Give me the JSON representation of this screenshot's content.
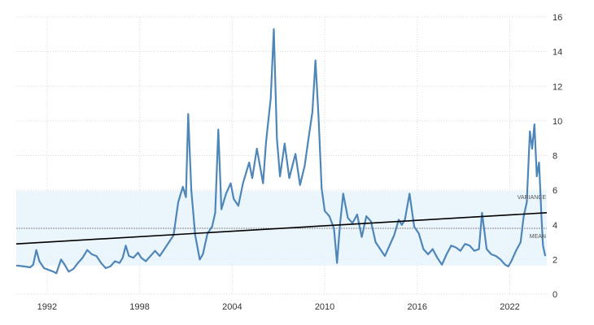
{
  "colors": {
    "series": "#4f86b8",
    "trend": "#000000",
    "band": "#e8f3fb",
    "grid": "#d9d9d9",
    "mean": "#888888"
  },
  "chart_data": {
    "type": "line",
    "title": "",
    "xlabel": "",
    "ylabel": "",
    "xlim": [
      1990.0,
      2024.4
    ],
    "ylim": [
      0,
      16
    ],
    "grid": true,
    "y_axis_side": "right",
    "x_ticks": [
      "1992",
      "1998",
      "2004",
      "2010",
      "2016",
      "2022"
    ],
    "y_ticks": [
      "0",
      "2",
      "4",
      "6",
      "8",
      "10",
      "12",
      "14",
      "16"
    ],
    "annotations": {
      "variance": "VARIANCE",
      "mean": "MEAN"
    },
    "variance_band": [
      1.65,
      5.95
    ],
    "mean_value": 3.8,
    "trend_line": {
      "x": [
        1990.0,
        2024.4
      ],
      "y": [
        2.9,
        4.7
      ]
    },
    "series": [
      {
        "values": [
          [
            1990.0,
            1.65
          ],
          [
            1990.5,
            1.6
          ],
          [
            1990.9,
            1.55
          ],
          [
            1991.1,
            1.7
          ],
          [
            1991.3,
            2.55
          ],
          [
            1991.5,
            1.9
          ],
          [
            1991.8,
            1.5
          ],
          [
            1992.1,
            1.4
          ],
          [
            1992.4,
            1.3
          ],
          [
            1992.6,
            1.2
          ],
          [
            1992.9,
            2.0
          ],
          [
            1993.1,
            1.75
          ],
          [
            1993.4,
            1.3
          ],
          [
            1993.7,
            1.45
          ],
          [
            1994.0,
            1.8
          ],
          [
            1994.3,
            2.1
          ],
          [
            1994.6,
            2.55
          ],
          [
            1994.9,
            2.3
          ],
          [
            1995.2,
            2.2
          ],
          [
            1995.5,
            1.8
          ],
          [
            1995.8,
            1.5
          ],
          [
            1996.1,
            1.6
          ],
          [
            1996.4,
            1.9
          ],
          [
            1996.7,
            1.8
          ],
          [
            1996.9,
            2.1
          ],
          [
            1997.1,
            2.8
          ],
          [
            1997.3,
            2.2
          ],
          [
            1997.6,
            2.1
          ],
          [
            1997.9,
            2.4
          ],
          [
            1998.1,
            2.1
          ],
          [
            1998.4,
            1.9
          ],
          [
            1998.7,
            2.2
          ],
          [
            1999.0,
            2.5
          ],
          [
            1999.3,
            2.2
          ],
          [
            1999.6,
            2.6
          ],
          [
            1999.9,
            3.0
          ],
          [
            2000.2,
            3.4
          ],
          [
            2000.5,
            5.3
          ],
          [
            2000.8,
            6.2
          ],
          [
            2001.0,
            5.6
          ],
          [
            2001.15,
            10.4
          ],
          [
            2001.35,
            6.0
          ],
          [
            2001.6,
            3.4
          ],
          [
            2001.9,
            2.0
          ],
          [
            2002.1,
            2.3
          ],
          [
            2002.4,
            3.5
          ],
          [
            2002.7,
            3.9
          ],
          [
            2002.9,
            4.7
          ],
          [
            2003.1,
            9.5
          ],
          [
            2003.3,
            4.9
          ],
          [
            2003.6,
            5.8
          ],
          [
            2003.9,
            6.4
          ],
          [
            2004.1,
            5.5
          ],
          [
            2004.4,
            5.1
          ],
          [
            2004.7,
            6.4
          ],
          [
            2004.9,
            7.0
          ],
          [
            2005.1,
            7.6
          ],
          [
            2005.3,
            6.7
          ],
          [
            2005.6,
            8.4
          ],
          [
            2005.8,
            7.4
          ],
          [
            2006.0,
            6.4
          ],
          [
            2006.2,
            8.8
          ],
          [
            2006.5,
            11.3
          ],
          [
            2006.7,
            15.3
          ],
          [
            2006.9,
            9.0
          ],
          [
            2007.1,
            6.8
          ],
          [
            2007.4,
            8.7
          ],
          [
            2007.7,
            6.7
          ],
          [
            2007.9,
            7.4
          ],
          [
            2008.1,
            8.1
          ],
          [
            2008.4,
            6.3
          ],
          [
            2008.7,
            7.4
          ],
          [
            2009.0,
            9.3
          ],
          [
            2009.2,
            10.5
          ],
          [
            2009.4,
            13.5
          ],
          [
            2009.6,
            10.2
          ],
          [
            2009.8,
            6.1
          ],
          [
            2010.0,
            4.8
          ],
          [
            2010.3,
            4.5
          ],
          [
            2010.6,
            3.8
          ],
          [
            2010.8,
            1.8
          ],
          [
            2011.0,
            4.1
          ],
          [
            2011.2,
            5.8
          ],
          [
            2011.5,
            4.4
          ],
          [
            2011.8,
            4.1
          ],
          [
            2012.1,
            4.6
          ],
          [
            2012.4,
            3.3
          ],
          [
            2012.7,
            4.5
          ],
          [
            2013.0,
            4.2
          ],
          [
            2013.3,
            3.0
          ],
          [
            2013.6,
            2.6
          ],
          [
            2013.9,
            2.2
          ],
          [
            2014.2,
            2.8
          ],
          [
            2014.5,
            3.4
          ],
          [
            2014.8,
            4.3
          ],
          [
            2015.0,
            4.0
          ],
          [
            2015.2,
            4.3
          ],
          [
            2015.5,
            5.8
          ],
          [
            2015.8,
            3.9
          ],
          [
            2016.1,
            3.5
          ],
          [
            2016.4,
            2.6
          ],
          [
            2016.7,
            2.3
          ],
          [
            2017.0,
            2.6
          ],
          [
            2017.3,
            2.1
          ],
          [
            2017.6,
            1.7
          ],
          [
            2017.9,
            2.3
          ],
          [
            2018.2,
            2.8
          ],
          [
            2018.5,
            2.7
          ],
          [
            2018.8,
            2.5
          ],
          [
            2019.1,
            2.9
          ],
          [
            2019.4,
            2.8
          ],
          [
            2019.7,
            2.5
          ],
          [
            2020.0,
            2.6
          ],
          [
            2020.2,
            4.7
          ],
          [
            2020.5,
            2.6
          ],
          [
            2020.8,
            2.3
          ],
          [
            2021.1,
            2.2
          ],
          [
            2021.4,
            2.0
          ],
          [
            2021.7,
            1.7
          ],
          [
            2021.9,
            1.6
          ],
          [
            2022.1,
            1.9
          ],
          [
            2022.4,
            2.5
          ],
          [
            2022.7,
            3.0
          ],
          [
            2022.9,
            4.5
          ],
          [
            2023.1,
            5.3
          ],
          [
            2023.3,
            9.4
          ],
          [
            2023.45,
            8.4
          ],
          [
            2023.6,
            9.8
          ],
          [
            2023.75,
            6.8
          ],
          [
            2023.9,
            7.6
          ],
          [
            2024.05,
            4.5
          ],
          [
            2024.15,
            2.8
          ],
          [
            2024.3,
            2.2
          ]
        ]
      }
    ]
  }
}
